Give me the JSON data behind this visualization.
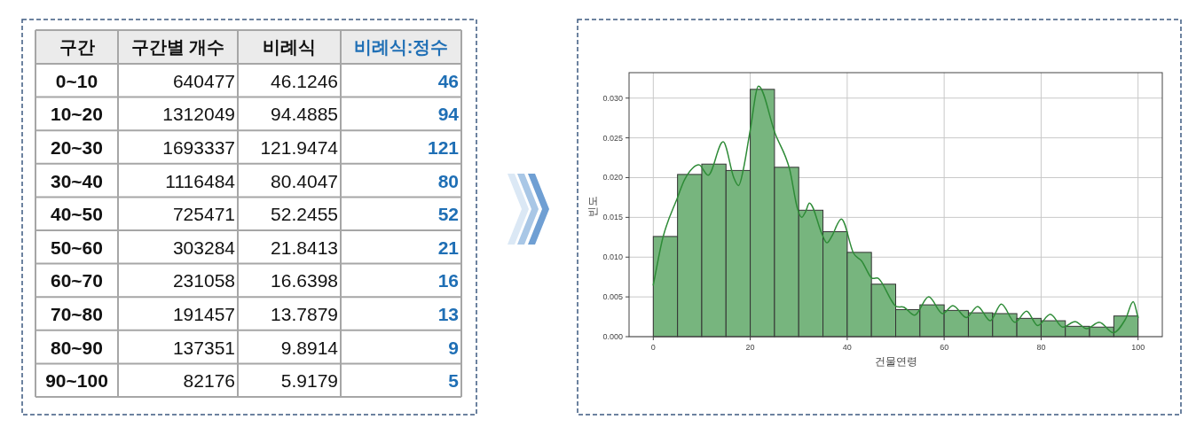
{
  "chart_data": [
    {
      "type": "other",
      "legend_title": "구간",
      "categories": [
        "0~10",
        "10~20",
        "20~30",
        "30~40",
        "40~50",
        "50~60",
        "60~70",
        "70~80",
        "80~90",
        "90~100"
      ],
      "data_labels": true,
      "series": [
        {
          "name": "구간별 개수",
          "values": [
            640477,
            1312049,
            1693337,
            1116484,
            725471,
            303284,
            231058,
            191457,
            137351,
            82176
          ]
        },
        {
          "name": "비례식",
          "values": [
            46.1246,
            94.4885,
            121.9474,
            80.4047,
            52.2455,
            21.8413,
            16.6398,
            13.7879,
            9.8914,
            5.9179
          ]
        },
        {
          "name": "비례식:정수",
          "color": "#1f6fb5",
          "values": [
            46,
            94,
            121,
            80,
            52,
            21,
            16,
            13,
            9,
            5
          ]
        }
      ]
    },
    {
      "type": "histogram",
      "xlabel": "건물연령",
      "ylabel": "빈도",
      "grid": true,
      "xlim": [
        -5,
        105
      ],
      "ylim": [
        0,
        0.0332
      ],
      "xticks": [
        0,
        20,
        40,
        60,
        80,
        100
      ],
      "yticks": [
        {
          "value": 0,
          "label": "0.000"
        },
        {
          "value": 0.005,
          "label": "0.005"
        },
        {
          "value": 0.01,
          "label": "0.010"
        },
        {
          "value": 0.015,
          "label": "0.015"
        },
        {
          "value": 0.02,
          "label": "0.020"
        },
        {
          "value": 0.025,
          "label": "0.025"
        },
        {
          "value": 0.03,
          "label": "0.030"
        }
      ],
      "bins": [
        0,
        5,
        10,
        15,
        20,
        25,
        30,
        35,
        40,
        45,
        50,
        55,
        60,
        65,
        70,
        75,
        80,
        85,
        90,
        95,
        100
      ],
      "series": [
        {
          "type": "histogram",
          "color": "#77b57e",
          "values": [
            0.0126,
            0.0204,
            0.0217,
            0.0209,
            0.0311,
            0.0213,
            0.0159,
            0.0132,
            0.0106,
            0.0066,
            0.0034,
            0.004,
            0.0033,
            0.003,
            0.0029,
            0.0023,
            0.002,
            0.0013,
            0.0012,
            0.0026
          ]
        },
        {
          "type": "line",
          "color": "#2e8b37",
          "x": [
            0,
            2,
            5,
            6.5,
            9.4,
            11.3,
            14.4,
            16.6,
            17.6,
            18.6,
            20,
            21.7,
            25.1,
            28.1,
            29.7,
            30.6,
            31.4,
            32.2,
            34.8,
            35.8,
            36.8,
            38.8,
            41.3,
            43,
            45,
            46.5,
            49.9,
            51.7,
            53.9,
            56.8,
            59.7,
            61.8,
            64.6,
            66.9,
            69.5,
            71.8,
            74.6,
            77,
            79.3,
            81.9,
            84.5,
            87,
            89.4,
            92,
            94.9,
            97.4,
            99,
            100
          ],
          "values": [
            0.0065,
            0.0125,
            0.0175,
            0.0198,
            0.0216,
            0.0203,
            0.0245,
            0.02,
            0.019,
            0.0211,
            0.026,
            0.0315,
            0.0256,
            0.0211,
            0.0162,
            0.015,
            0.0157,
            0.0168,
            0.0129,
            0.0118,
            0.0126,
            0.0148,
            0.0105,
            0.0095,
            0.0074,
            0.0073,
            0.0039,
            0.0037,
            0.0027,
            0.005,
            0.0029,
            0.0039,
            0.0024,
            0.0038,
            0.002,
            0.0041,
            0.0018,
            0.0032,
            0.0014,
            0.0028,
            0.0012,
            0.0019,
            0.001,
            0.0018,
            0.0005,
            0.0022,
            0.0044,
            0.0024
          ]
        }
      ]
    }
  ]
}
